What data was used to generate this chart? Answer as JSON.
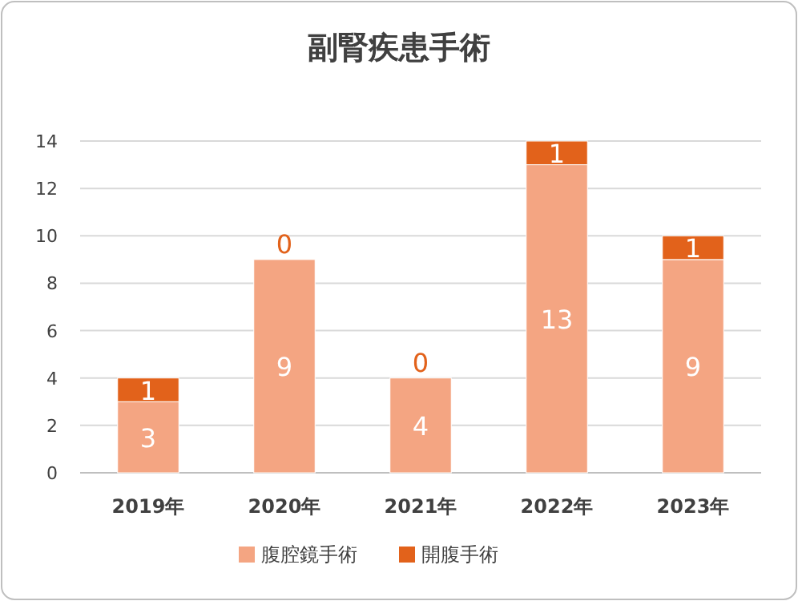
{
  "chart_data": {
    "type": "bar",
    "stacked": true,
    "title": "副腎疾患手術",
    "categories": [
      "2019年",
      "2020年",
      "2021年",
      "2022年",
      "2023年"
    ],
    "series": [
      {
        "name": "腹腔鏡手術",
        "color": "#f4a582",
        "values": [
          3,
          9,
          4,
          13,
          9
        ]
      },
      {
        "name": "開腹手術",
        "color": "#e2621b",
        "values": [
          1,
          0,
          0,
          1,
          1
        ]
      }
    ],
    "ylim": [
      0,
      14
    ],
    "yticks": [
      0,
      2,
      4,
      6,
      8,
      10,
      12,
      14
    ],
    "grid": "y",
    "legend": "bottom",
    "data_labels": true
  }
}
